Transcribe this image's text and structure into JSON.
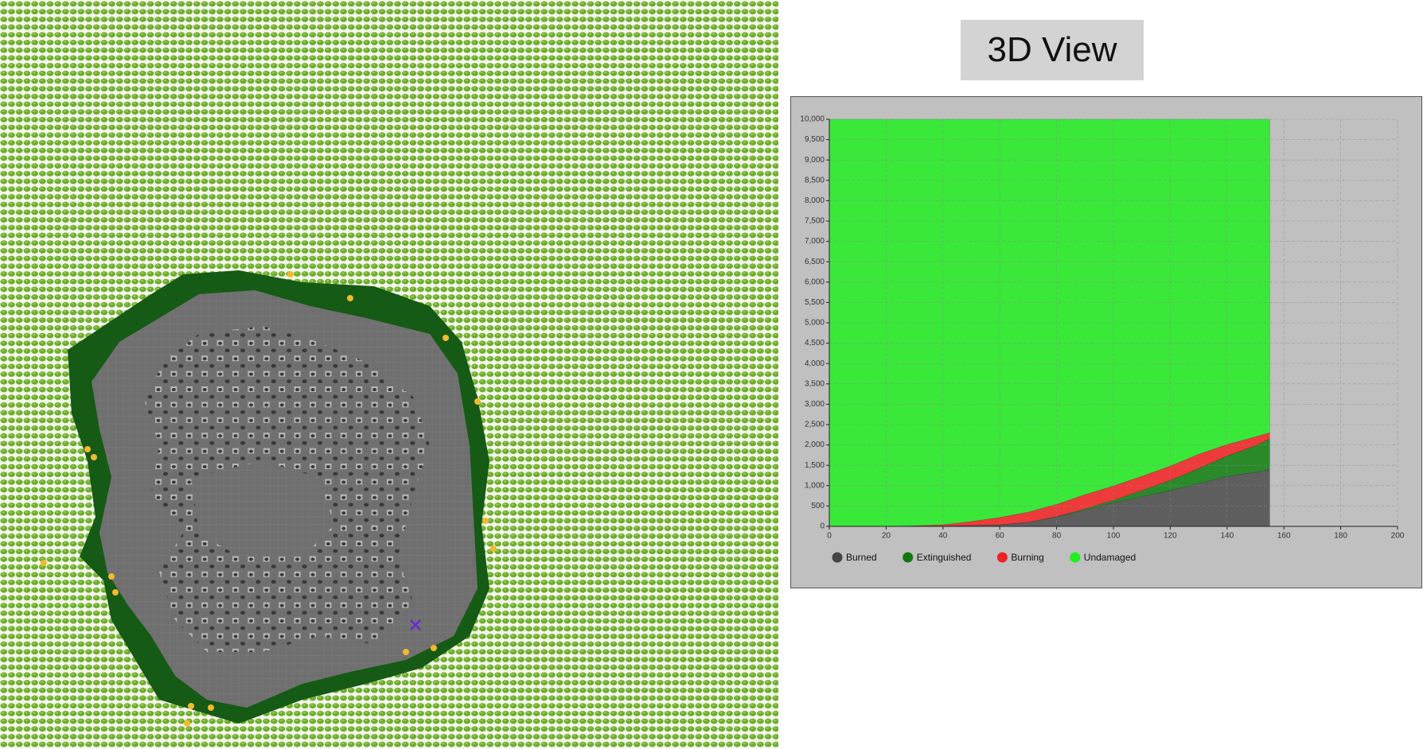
{
  "button": {
    "label": "3D View"
  },
  "chart_data": {
    "type": "stacked-area",
    "x": [
      0,
      10,
      20,
      30,
      40,
      50,
      60,
      70,
      80,
      90,
      100,
      110,
      120,
      130,
      140,
      150,
      155
    ],
    "series": [
      {
        "name": "Burned",
        "color": "#5e5e5e",
        "legend_color": "#444444",
        "values": [
          0,
          0,
          0,
          5,
          10,
          20,
          40,
          100,
          230,
          400,
          580,
          730,
          880,
          1050,
          1230,
          1330,
          1400
        ]
      },
      {
        "name": "Extinguished",
        "color": "#2a8a2a",
        "legend_color": "#117711",
        "values": [
          0,
          0,
          0,
          0,
          0,
          0,
          0,
          0,
          10,
          30,
          60,
          150,
          250,
          370,
          500,
          650,
          750
        ]
      },
      {
        "name": "Burning",
        "color": "#ee3a3a",
        "legend_color": "#ee2222",
        "values": [
          0,
          0,
          0,
          10,
          30,
          100,
          180,
          250,
          300,
          350,
          350,
          350,
          350,
          350,
          280,
          220,
          150
        ]
      },
      {
        "name": "Undamaged",
        "color": "#3ae83a",
        "legend_color": "#22ee22",
        "values": [
          10000,
          10000,
          10000,
          9985,
          9960,
          9880,
          9780,
          9650,
          9460,
          9220,
          9010,
          8770,
          8520,
          8230,
          7990,
          7800,
          7700
        ]
      }
    ],
    "xlim": [
      0,
      200
    ],
    "xticks": [
      0,
      20,
      40,
      60,
      80,
      100,
      120,
      140,
      160,
      180,
      200
    ],
    "ylim": [
      0,
      10000
    ],
    "yticks": [
      0,
      500,
      {
        "value": 1000,
        "label": "1,000"
      },
      {
        "value": 1500,
        "label": "1,500"
      },
      {
        "value": 2000,
        "label": "2,000"
      },
      {
        "value": 2500,
        "label": "2,500"
      },
      {
        "value": 3000,
        "label": "3,000"
      },
      {
        "value": 3500,
        "label": "3,500"
      },
      {
        "value": 4000,
        "label": "4,000"
      },
      {
        "value": 4500,
        "label": "4,500"
      },
      {
        "value": 5000,
        "label": "5,000"
      },
      {
        "value": 5500,
        "label": "5,500"
      },
      {
        "value": 6000,
        "label": "6,000"
      },
      {
        "value": 6500,
        "label": "6,500"
      },
      {
        "value": 7000,
        "label": "7,000"
      },
      {
        "value": 7500,
        "label": "7,500"
      },
      {
        "value": 8000,
        "label": "8,000"
      },
      {
        "value": 8500,
        "label": "8,500"
      },
      {
        "value": 9000,
        "label": "9,000"
      },
      {
        "value": 9500,
        "label": "9,500"
      },
      {
        "value": 10000,
        "label": "10,000"
      }
    ],
    "grid": true
  }
}
